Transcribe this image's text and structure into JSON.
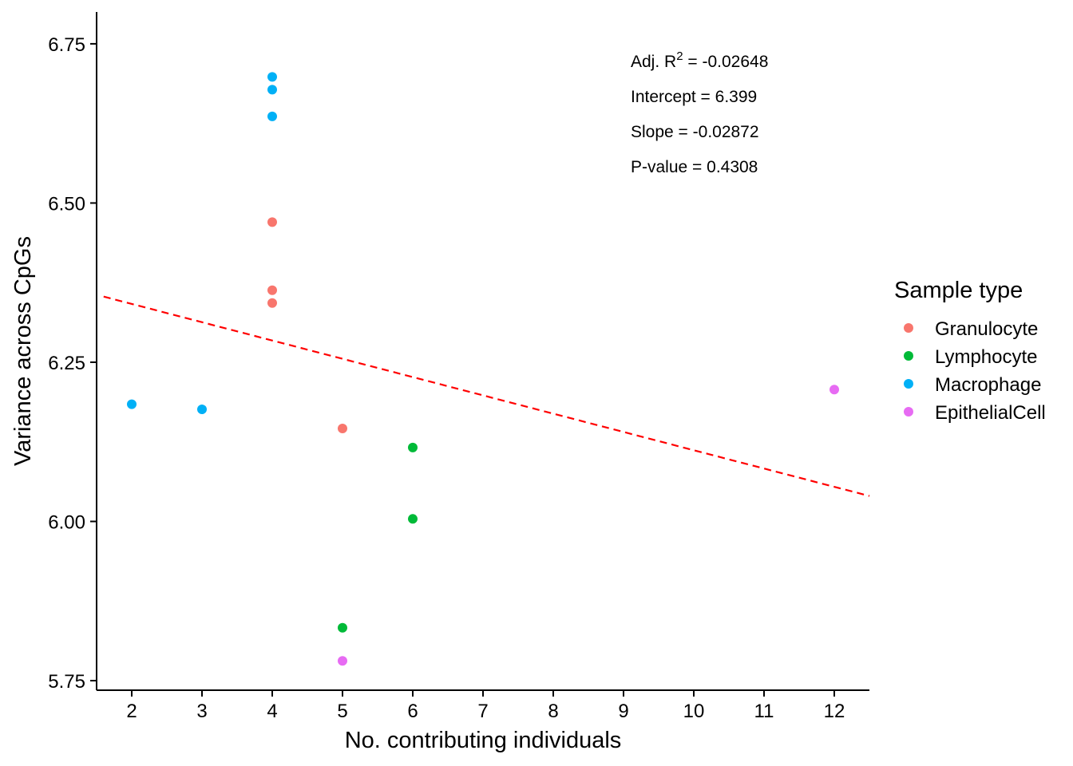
{
  "chart_data": {
    "type": "scatter",
    "title": "",
    "xlabel": "No. contributing individuals",
    "ylabel": "Variance across CpGs",
    "xlim": [
      1.5,
      12.5
    ],
    "ylim": [
      5.735,
      6.8
    ],
    "x_ticks": [
      2,
      3,
      4,
      5,
      6,
      7,
      8,
      9,
      10,
      11,
      12
    ],
    "y_ticks": [
      5.75,
      6.0,
      6.25,
      6.5,
      6.75
    ],
    "y_tick_labels": [
      "5.75",
      "6.00",
      "6.25",
      "6.50",
      "6.75"
    ],
    "grid": false,
    "series": [
      {
        "name": "Granulocyte",
        "color": "#F8766D",
        "points": [
          [
            4,
            6.47
          ],
          [
            4,
            6.363
          ],
          [
            4,
            6.343
          ],
          [
            5,
            6.146
          ]
        ]
      },
      {
        "name": "Lymphocyte",
        "color": "#00BA38",
        "points": [
          [
            6,
            6.116
          ],
          [
            6,
            6.004
          ],
          [
            5,
            5.833
          ]
        ]
      },
      {
        "name": "Macrophage",
        "color": "#00B0F6",
        "points": [
          [
            4,
            6.698
          ],
          [
            4,
            6.678
          ],
          [
            4,
            6.636
          ],
          [
            2,
            6.184
          ],
          [
            3,
            6.176
          ]
        ]
      },
      {
        "name": "EpithelialCell",
        "color": "#E76BF3",
        "points": [
          [
            12,
            6.207
          ],
          [
            5,
            5.781
          ]
        ]
      }
    ],
    "regression_line": {
      "intercept": 6.399,
      "slope": -0.02872,
      "color": "#FF0000",
      "style": "dashed"
    },
    "annotations": {
      "adj_r2_prefix": "Adj. R",
      "adj_r2_sup": "2",
      "adj_r2_value": " = -0.02648",
      "intercept": "Intercept = 6.399",
      "slope": "Slope = -0.02872",
      "pvalue": "P-value = 0.4308"
    },
    "legend": {
      "title": "Sample type",
      "position": "right"
    }
  }
}
